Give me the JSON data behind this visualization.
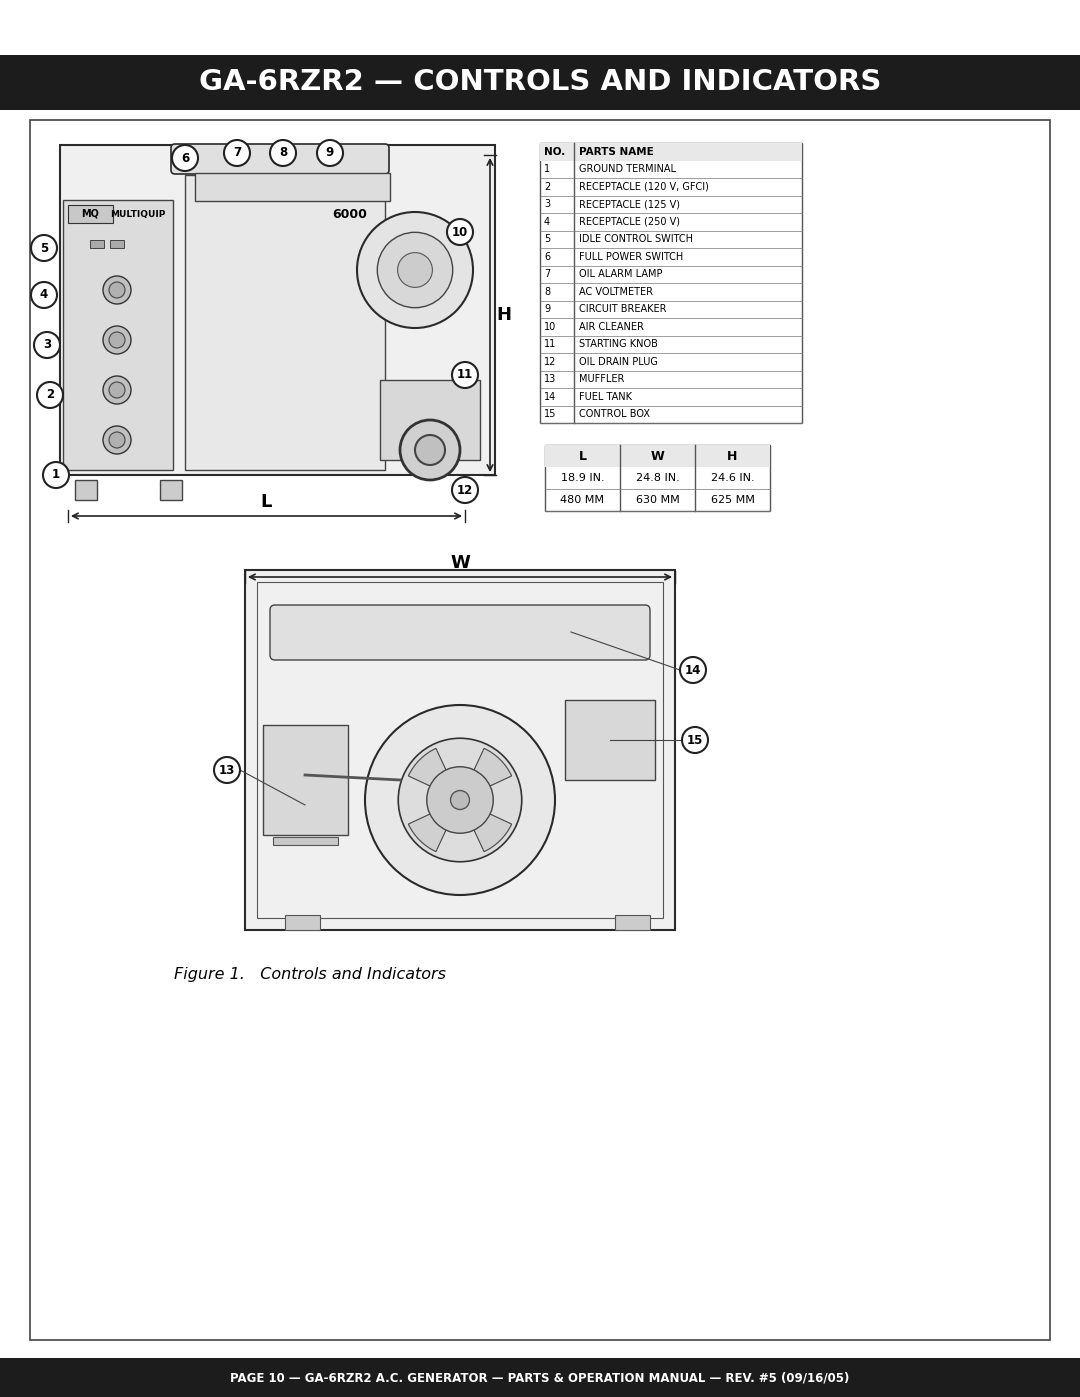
{
  "title": "GA-6RZR2 — CONTROLS AND INDICATORS",
  "footer": "PAGE 10 — GA-6RZR2 A.C. GENERATOR — PARTS & OPERATION MANUAL — REV. #5 (09/16/05)",
  "figure_caption": "Figure 1.   Controls and Indicators",
  "parts_table": {
    "rows": [
      [
        "1",
        "GROUND TERMINAL"
      ],
      [
        "2",
        "RECEPTACLE (120 V, GFCI)"
      ],
      [
        "3",
        "RECEPTACLE (125 V)"
      ],
      [
        "4",
        "RECEPTACLE (250 V)"
      ],
      [
        "5",
        "IDLE CONTROL SWITCH"
      ],
      [
        "6",
        "FULL POWER SWITCH"
      ],
      [
        "7",
        "OIL ALARM LAMP"
      ],
      [
        "8",
        "AC VOLTMETER"
      ],
      [
        "9",
        "CIRCUIT BREAKER"
      ],
      [
        "10",
        "AIR CLEANER"
      ],
      [
        "11",
        "STARTING KNOB"
      ],
      [
        "12",
        "OIL DRAIN PLUG"
      ],
      [
        "13",
        "MUFFLER"
      ],
      [
        "14",
        "FUEL TANK"
      ],
      [
        "15",
        "CONTROL BOX"
      ]
    ]
  },
  "dims_table": {
    "headers": [
      "L",
      "W",
      "H"
    ],
    "row1": [
      "18.9 IN.",
      "24.8 IN.",
      "24.6 IN."
    ],
    "row2": [
      "480 MM",
      "630 MM",
      "625 MM"
    ]
  }
}
